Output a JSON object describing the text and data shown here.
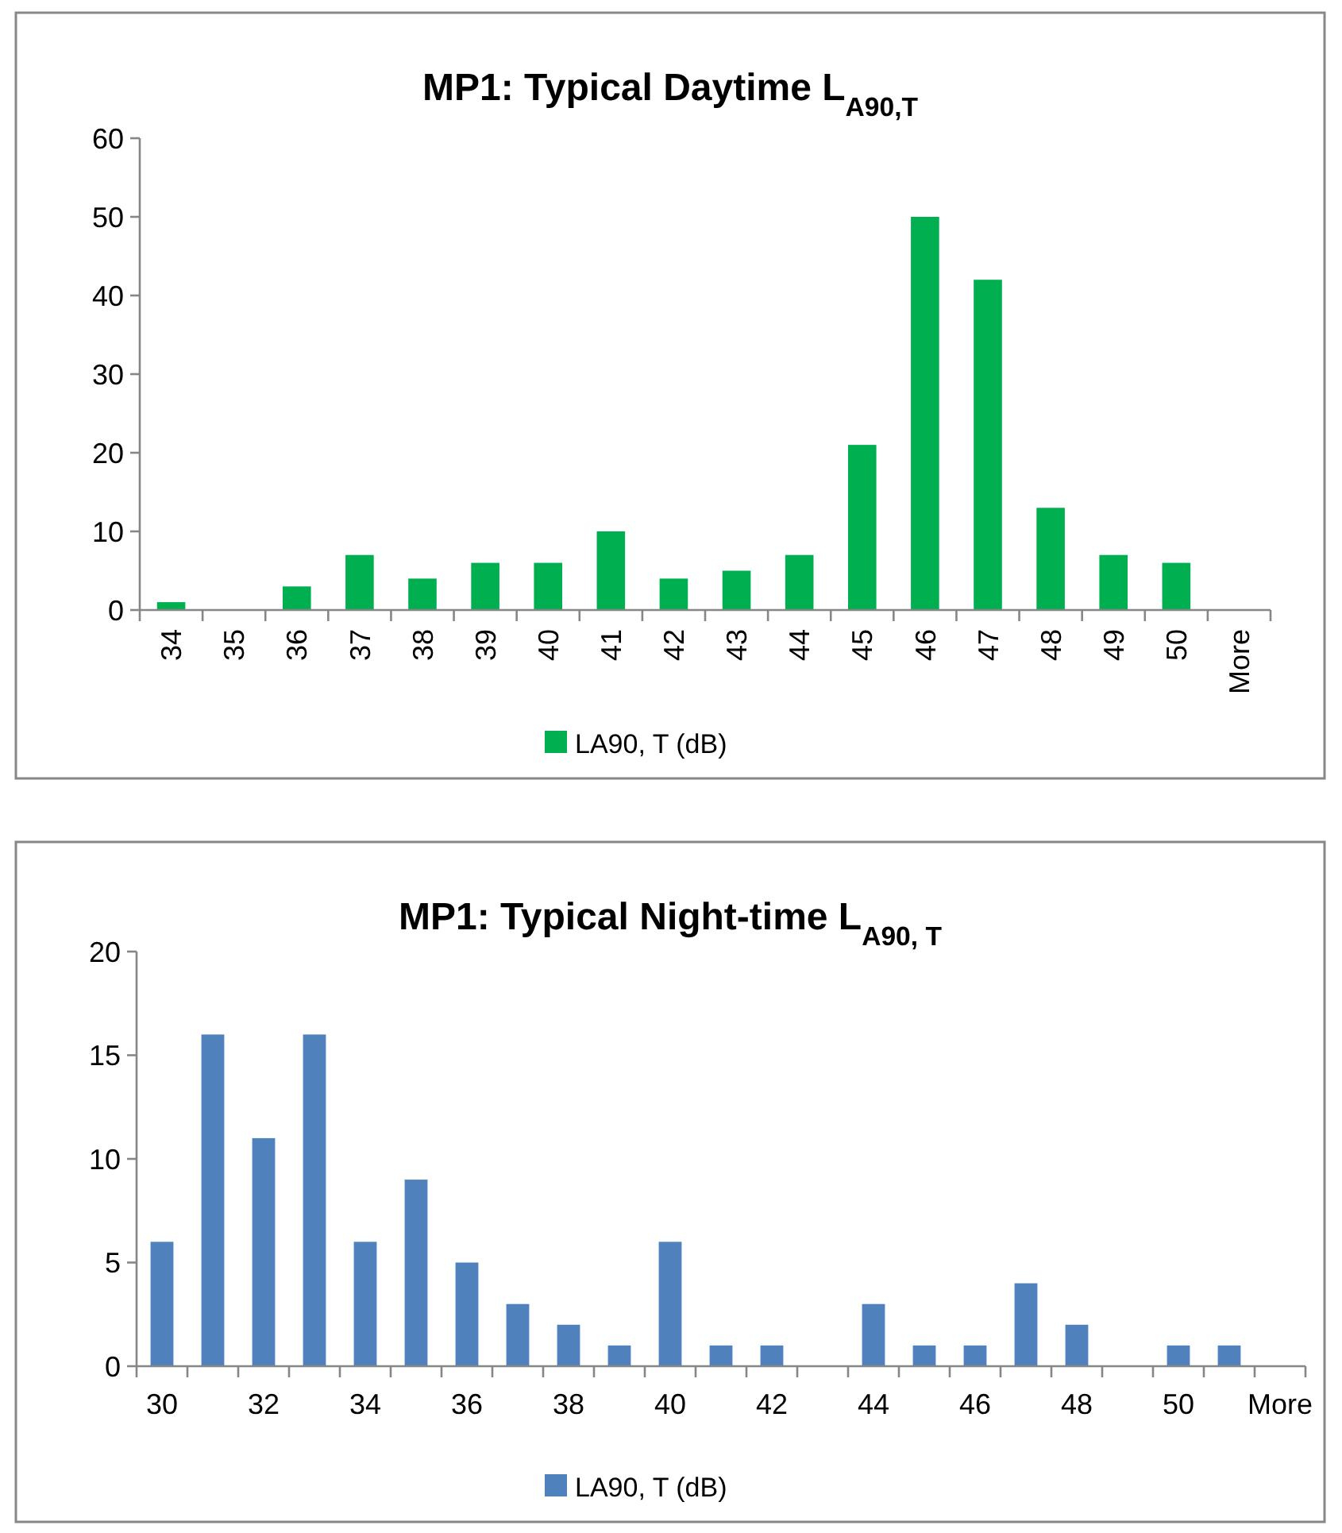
{
  "chart_data": [
    {
      "type": "bar",
      "title": "MP1: Typical Daytime L$_{A90,T}$",
      "categories": [
        "34",
        "35",
        "36",
        "37",
        "38",
        "39",
        "40",
        "41",
        "42",
        "43",
        "44",
        "45",
        "46",
        "47",
        "48",
        "49",
        "50",
        "More"
      ],
      "series": [
        {
          "name": "LA90, T (dB)",
          "color": "#00b050",
          "values": [
            1,
            0,
            3,
            7,
            4,
            6,
            6,
            10,
            4,
            5,
            7,
            21,
            50,
            42,
            13,
            7,
            6,
            0
          ]
        }
      ],
      "ylim": [
        0,
        60
      ],
      "yticks": [
        0,
        10,
        20,
        30,
        40,
        50,
        60
      ],
      "grid": false,
      "legend": "bottom"
    },
    {
      "type": "bar",
      "title": "MP1: Typical Night-time L$_{A90, T}$",
      "categories": [
        "30",
        null,
        "32",
        null,
        "34",
        null,
        "36",
        null,
        "38",
        null,
        "40",
        null,
        "42",
        null,
        "44",
        null,
        "46",
        null,
        "48",
        null,
        "50",
        null,
        "More"
      ],
      "series": [
        {
          "name": "LA90, T (dB)",
          "color": "#4f81bd",
          "values": [
            6,
            16,
            11,
            16,
            6,
            9,
            5,
            3,
            2,
            1,
            6,
            1,
            1,
            0,
            3,
            1,
            1,
            4,
            2,
            0,
            1,
            1,
            0
          ]
        }
      ],
      "ylim": [
        0,
        20
      ],
      "yticks": [
        0,
        5,
        10,
        15,
        20
      ],
      "grid": false,
      "legend": "bottom"
    }
  ]
}
